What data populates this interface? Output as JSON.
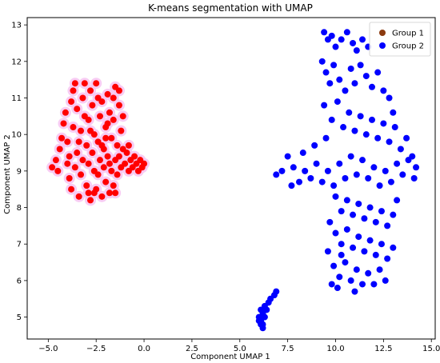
{
  "chart_data": {
    "type": "scatter",
    "title": "K-means segmentation with UMAP",
    "xlabel": "Component UMAP 1",
    "ylabel": "Component UMAP 2",
    "xlim": [
      -6.1,
      15.2
    ],
    "ylim": [
      4.4,
      13.2
    ],
    "xticks": [
      -5.0,
      -2.5,
      0.0,
      2.5,
      5.0,
      7.5,
      10.0,
      12.5,
      15.0
    ],
    "xtick_labels": [
      "−5.0",
      "−2.5",
      "0.0",
      "2.5",
      "5.0",
      "7.5",
      "10.0",
      "12.5",
      "15.0"
    ],
    "yticks": [
      5,
      6,
      7,
      8,
      9,
      10,
      11,
      12,
      13
    ],
    "ytick_labels": [
      "5",
      "6",
      "7",
      "8",
      "9",
      "10",
      "11",
      "12",
      "13"
    ],
    "grid": false,
    "legend_position": "top-right",
    "series": [
      {
        "name": "Group 1",
        "color": "#8b3a0f",
        "render_color": "#ff0000",
        "halo_color": "#f7c6f2",
        "points": [
          [
            -4.8,
            9.1
          ],
          [
            -4.6,
            9.3
          ],
          [
            -4.5,
            9.0
          ],
          [
            -4.4,
            9.6
          ],
          [
            -4.3,
            9.9
          ],
          [
            -4.2,
            10.3
          ],
          [
            -4.1,
            10.6
          ],
          [
            -4.0,
            9.2
          ],
          [
            -3.9,
            8.8
          ],
          [
            -3.8,
            8.5
          ],
          [
            -3.8,
            10.9
          ],
          [
            -3.7,
            11.2
          ],
          [
            -3.6,
            11.4
          ],
          [
            -3.5,
            10.7
          ],
          [
            -3.5,
            9.5
          ],
          [
            -3.4,
            8.3
          ],
          [
            -3.3,
            8.9
          ],
          [
            -3.3,
            10.1
          ],
          [
            -3.2,
            11.0
          ],
          [
            -3.1,
            11.4
          ],
          [
            -3.0,
            9.7
          ],
          [
            -3.0,
            8.6
          ],
          [
            -2.9,
            10.4
          ],
          [
            -2.9,
            9.2
          ],
          [
            -2.8,
            11.2
          ],
          [
            -2.8,
            8.2
          ],
          [
            -2.7,
            10.8
          ],
          [
            -2.7,
            9.5
          ],
          [
            -2.6,
            9.0
          ],
          [
            -2.6,
            10.0
          ],
          [
            -2.5,
            8.5
          ],
          [
            -2.5,
            11.4
          ],
          [
            -2.4,
            9.8
          ],
          [
            -2.4,
            8.9
          ],
          [
            -2.3,
            10.5
          ],
          [
            -2.3,
            9.3
          ],
          [
            -2.2,
            8.3
          ],
          [
            -2.2,
            10.9
          ],
          [
            -2.1,
            9.6
          ],
          [
            -2.1,
            9.1
          ],
          [
            -2.0,
            10.2
          ],
          [
            -2.0,
            8.7
          ],
          [
            -1.9,
            9.4
          ],
          [
            -1.9,
            11.1
          ],
          [
            -1.8,
            8.4
          ],
          [
            -1.8,
            10.6
          ],
          [
            -1.7,
            9.9
          ],
          [
            -1.7,
            9.0
          ],
          [
            -1.6,
            10.4
          ],
          [
            -1.6,
            8.6
          ],
          [
            -1.5,
            9.3
          ],
          [
            -1.5,
            11.3
          ],
          [
            -1.4,
            9.7
          ],
          [
            -1.4,
            8.9
          ],
          [
            -1.3,
            10.8
          ],
          [
            -1.3,
            9.4
          ],
          [
            -1.2,
            9.1
          ],
          [
            -1.2,
            10.1
          ],
          [
            -1.1,
            9.6
          ],
          [
            -1.0,
            9.2
          ],
          [
            -0.9,
            9.5
          ],
          [
            -0.8,
            9.0
          ],
          [
            -0.7,
            9.3
          ],
          [
            -0.6,
            9.1
          ],
          [
            -0.5,
            9.4
          ],
          [
            -0.4,
            9.2
          ],
          [
            -0.3,
            9.0
          ],
          [
            -0.2,
            9.3
          ],
          [
            -0.1,
            9.1
          ],
          [
            0.0,
            9.2
          ],
          [
            -3.9,
            9.4
          ],
          [
            -3.6,
            9.1
          ],
          [
            -3.4,
            9.8
          ],
          [
            -3.2,
            9.3
          ],
          [
            -2.9,
            8.4
          ],
          [
            -2.6,
            8.4
          ],
          [
            -2.4,
            11.0
          ],
          [
            -2.0,
            9.9
          ],
          [
            -1.8,
            9.2
          ],
          [
            -1.5,
            8.4
          ],
          [
            -4.0,
            9.8
          ],
          [
            -3.7,
            10.2
          ],
          [
            -3.1,
            10.5
          ],
          [
            -2.8,
            10.1
          ],
          [
            -2.2,
            9.7
          ],
          [
            -1.9,
            10.3
          ],
          [
            -1.6,
            11.0
          ],
          [
            -1.3,
            11.2
          ],
          [
            -1.1,
            10.5
          ],
          [
            -0.8,
            9.7
          ]
        ]
      },
      {
        "name": "Group 2",
        "color": "#0000ff",
        "points": [
          [
            9.4,
            12.8
          ],
          [
            9.6,
            12.6
          ],
          [
            9.8,
            12.7
          ],
          [
            10.0,
            12.4
          ],
          [
            10.3,
            12.6
          ],
          [
            10.6,
            12.8
          ],
          [
            10.9,
            12.5
          ],
          [
            11.1,
            12.3
          ],
          [
            11.4,
            12.6
          ],
          [
            11.7,
            12.4
          ],
          [
            9.3,
            12.0
          ],
          [
            9.5,
            11.7
          ],
          [
            9.7,
            11.4
          ],
          [
            9.9,
            11.9
          ],
          [
            10.2,
            11.5
          ],
          [
            10.5,
            11.2
          ],
          [
            10.8,
            11.8
          ],
          [
            11.0,
            11.4
          ],
          [
            11.3,
            11.9
          ],
          [
            11.6,
            11.6
          ],
          [
            11.9,
            11.3
          ],
          [
            12.2,
            11.7
          ],
          [
            12.5,
            11.2
          ],
          [
            12.8,
            11.0
          ],
          [
            13.0,
            10.6
          ],
          [
            9.4,
            10.8
          ],
          [
            9.8,
            10.4
          ],
          [
            10.1,
            10.9
          ],
          [
            10.4,
            10.2
          ],
          [
            10.7,
            10.6
          ],
          [
            11.0,
            10.1
          ],
          [
            11.3,
            10.5
          ],
          [
            11.6,
            10.0
          ],
          [
            11.9,
            10.4
          ],
          [
            12.2,
            9.9
          ],
          [
            12.5,
            10.3
          ],
          [
            12.8,
            9.8
          ],
          [
            13.1,
            10.2
          ],
          [
            13.4,
            9.6
          ],
          [
            13.7,
            9.9
          ],
          [
            14.0,
            9.4
          ],
          [
            14.2,
            9.1
          ],
          [
            14.1,
            8.8
          ],
          [
            13.8,
            9.3
          ],
          [
            13.5,
            8.9
          ],
          [
            13.2,
            9.2
          ],
          [
            12.9,
            8.7
          ],
          [
            12.6,
            9.0
          ],
          [
            12.3,
            8.6
          ],
          [
            12.0,
            9.1
          ],
          [
            11.7,
            8.8
          ],
          [
            11.4,
            9.3
          ],
          [
            11.1,
            8.9
          ],
          [
            10.8,
            9.4
          ],
          [
            10.5,
            8.8
          ],
          [
            10.2,
            9.2
          ],
          [
            9.9,
            8.6
          ],
          [
            9.6,
            9.0
          ],
          [
            9.3,
            8.7
          ],
          [
            9.0,
            9.2
          ],
          [
            8.7,
            8.8
          ],
          [
            8.4,
            9.0
          ],
          [
            8.1,
            8.7
          ],
          [
            7.8,
            9.1
          ],
          [
            7.5,
            9.4
          ],
          [
            7.2,
            9.0
          ],
          [
            6.9,
            8.9
          ],
          [
            7.7,
            8.6
          ],
          [
            8.3,
            9.5
          ],
          [
            8.9,
            9.7
          ],
          [
            9.5,
            9.9
          ],
          [
            10.0,
            8.3
          ],
          [
            10.3,
            7.9
          ],
          [
            10.6,
            8.2
          ],
          [
            10.9,
            7.8
          ],
          [
            11.2,
            8.1
          ],
          [
            11.5,
            7.7
          ],
          [
            11.8,
            8.0
          ],
          [
            12.1,
            7.6
          ],
          [
            12.4,
            7.9
          ],
          [
            12.7,
            7.5
          ],
          [
            13.0,
            7.8
          ],
          [
            13.2,
            8.2
          ],
          [
            9.7,
            7.6
          ],
          [
            10.0,
            7.3
          ],
          [
            10.3,
            7.0
          ],
          [
            10.6,
            7.4
          ],
          [
            10.9,
            6.9
          ],
          [
            11.2,
            7.2
          ],
          [
            11.5,
            6.8
          ],
          [
            11.8,
            7.1
          ],
          [
            12.1,
            6.7
          ],
          [
            12.4,
            7.0
          ],
          [
            12.7,
            6.6
          ],
          [
            13.0,
            6.9
          ],
          [
            9.6,
            6.8
          ],
          [
            9.9,
            6.4
          ],
          [
            10.2,
            6.1
          ],
          [
            10.5,
            6.5
          ],
          [
            10.8,
            6.0
          ],
          [
            11.1,
            6.3
          ],
          [
            11.4,
            5.9
          ],
          [
            11.7,
            6.2
          ],
          [
            12.0,
            5.9
          ],
          [
            12.3,
            6.3
          ],
          [
            12.6,
            6.0
          ],
          [
            9.8,
            5.9
          ],
          [
            10.1,
            5.8
          ],
          [
            11.0,
            5.7
          ],
          [
            10.3,
            6.7
          ],
          [
            6.2,
            5.1
          ],
          [
            6.0,
            5.0
          ],
          [
            6.1,
            4.9
          ],
          [
            6.2,
            4.8
          ],
          [
            6.3,
            5.0
          ],
          [
            6.1,
            5.2
          ],
          [
            6.3,
            5.3
          ],
          [
            6.0,
            4.9
          ],
          [
            6.6,
            5.5
          ],
          [
            6.8,
            5.6
          ],
          [
            6.9,
            5.7
          ],
          [
            6.5,
            5.4
          ],
          [
            6.2,
            4.7
          ],
          [
            6.1,
            4.8
          ],
          [
            6.4,
            5.2
          ]
        ]
      }
    ]
  }
}
